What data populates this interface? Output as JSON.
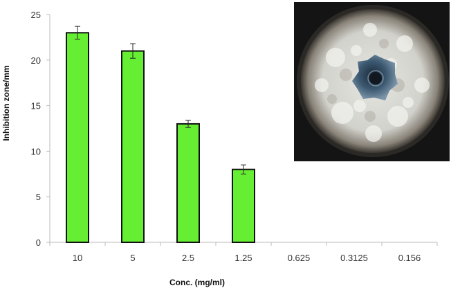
{
  "chart_data": {
    "type": "bar",
    "categories": [
      "10",
      "5",
      "2.5",
      "1.25",
      "0.625",
      "0.3125",
      "0.156"
    ],
    "values": [
      23,
      21,
      13,
      8,
      0,
      0,
      0
    ],
    "errors": [
      0.7,
      0.8,
      0.4,
      0.5,
      0,
      0,
      0
    ],
    "xlabel": "Conc. (mg/ml)",
    "ylabel": "Inhibition zone/mm",
    "ylim": [
      0,
      25
    ],
    "yticks": [
      0,
      5,
      10,
      15,
      20,
      25
    ],
    "grid": false,
    "colors": {
      "bar_fill": "#66ee33",
      "bar_stroke": "#111111",
      "axis": "#bbbbbb"
    }
  },
  "photo": {
    "subject": "petri-dish-inhibition-zone"
  }
}
